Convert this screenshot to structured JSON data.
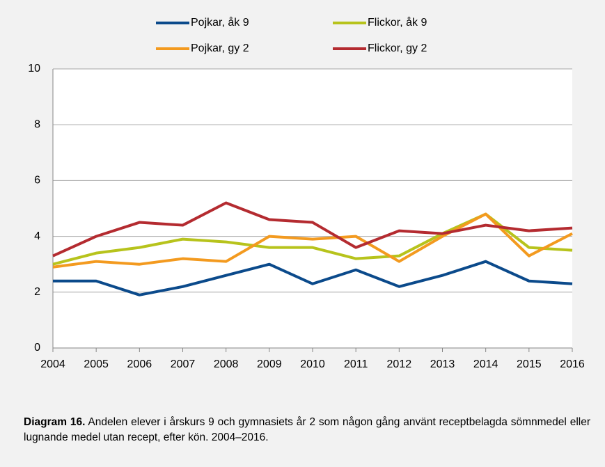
{
  "chart_data": {
    "type": "line",
    "x": [
      2004,
      2005,
      2006,
      2007,
      2008,
      2009,
      2010,
      2011,
      2012,
      2013,
      2014,
      2015,
      2016
    ],
    "xlim": [
      2004,
      2016
    ],
    "xticks": [
      2004,
      2005,
      2006,
      2007,
      2008,
      2009,
      2010,
      2011,
      2012,
      2013,
      2014,
      2015,
      2016
    ],
    "ylim": [
      0,
      10
    ],
    "yticks": [
      0,
      2,
      4,
      6,
      8,
      10
    ],
    "grid": true,
    "legend": "top",
    "series": [
      {
        "name": "Pojkar, åk 9",
        "color": "#0b4a8b",
        "values": [
          2.4,
          2.4,
          1.9,
          2.2,
          2.6,
          3.0,
          2.3,
          2.8,
          2.2,
          2.6,
          3.1,
          2.4,
          2.3
        ]
      },
      {
        "name": "Flickor, åk 9",
        "color": "#b7c31c",
        "values": [
          3.0,
          3.4,
          3.6,
          3.9,
          3.8,
          3.6,
          3.6,
          3.2,
          3.3,
          4.1,
          4.8,
          3.6,
          3.5
        ]
      },
      {
        "name": "Pojkar, gy 2",
        "color": "#f39a1f",
        "values": [
          2.9,
          3.1,
          3.0,
          3.2,
          3.1,
          4.0,
          3.9,
          4.0,
          3.1,
          4.0,
          4.8,
          3.3,
          4.1
        ]
      },
      {
        "name": "Flickor, gy 2",
        "color": "#b42b30",
        "values": [
          3.3,
          4.0,
          4.5,
          4.4,
          5.2,
          4.6,
          4.5,
          3.6,
          4.2,
          4.1,
          4.4,
          4.2,
          4.3
        ]
      }
    ],
    "caption": {
      "label": "Diagram 16.",
      "text": "Andelen elever i årskurs 9 och gymnasiets år 2 som någon gång använt receptbelagda sömnmedel eller lugnande medel utan recept, efter kön. 2004–2016."
    }
  }
}
